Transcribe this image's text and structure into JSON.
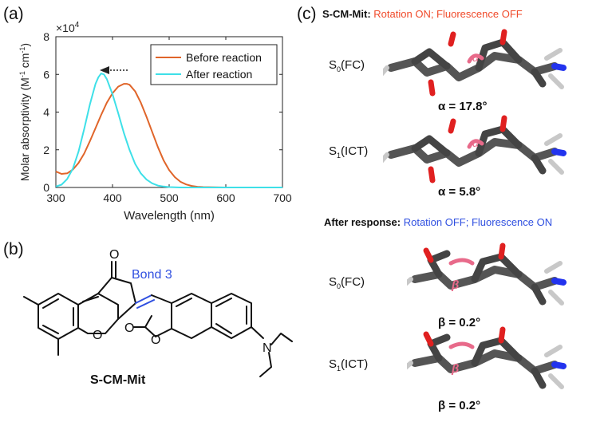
{
  "panels": {
    "a_label": "(a)",
    "b_label": "(b)",
    "c_label": "(c)"
  },
  "chart_data": {
    "type": "line",
    "xlabel": "Wavelength (nm)",
    "ylabel": "Molar absorptivity (M",
    "ylabel_sup1": "-1",
    "ylabel_mid": " cm",
    "ylabel_sup2": "-1",
    "ylabel_end": ")",
    "y_multiplier": "×10",
    "y_multiplier_exp": "4",
    "xlim": [
      300,
      700
    ],
    "ylim": [
      0,
      8
    ],
    "xticks": [
      300,
      400,
      500,
      600,
      700
    ],
    "yticks": [
      0,
      2,
      4,
      6,
      8
    ],
    "legend_position": "top-right",
    "series": [
      {
        "name": "Before reaction",
        "color": "#e0652a",
        "x": [
          300,
          310,
          320,
          330,
          340,
          350,
          360,
          370,
          380,
          390,
          400,
          410,
          420,
          425,
          430,
          440,
          450,
          460,
          470,
          480,
          490,
          500,
          510,
          520,
          530,
          540,
          550,
          560,
          580,
          600,
          650,
          700
        ],
        "y": [
          0.85,
          0.72,
          0.75,
          0.95,
          1.3,
          1.8,
          2.45,
          3.15,
          3.85,
          4.5,
          5.0,
          5.35,
          5.5,
          5.5,
          5.45,
          5.1,
          4.5,
          3.75,
          2.95,
          2.15,
          1.45,
          0.92,
          0.55,
          0.3,
          0.16,
          0.08,
          0.04,
          0.02,
          0.01,
          0.0,
          0.0,
          0.0
        ]
      },
      {
        "name": "After reaction",
        "color": "#3ee0e8",
        "x": [
          300,
          310,
          320,
          330,
          340,
          350,
          360,
          370,
          375,
          380,
          385,
          390,
          400,
          410,
          420,
          430,
          440,
          450,
          460,
          470,
          480,
          490,
          500,
          520,
          550,
          600,
          700
        ],
        "y": [
          0.05,
          0.15,
          0.45,
          1.0,
          1.9,
          3.1,
          4.4,
          5.5,
          5.85,
          6.05,
          6.0,
          5.75,
          4.95,
          3.95,
          2.9,
          2.0,
          1.25,
          0.75,
          0.42,
          0.22,
          0.1,
          0.05,
          0.02,
          0.0,
          0.0,
          0.0,
          0.0
        ]
      }
    ]
  },
  "structure": {
    "carbonyl_top": "O",
    "ring_oxygen": "O",
    "lactone_oxygen": "O",
    "lactone_ring_oxygen": "O",
    "amine_nitrogen": "N",
    "bond_label": "Bond 3",
    "compound_name": "S-CM-Mit"
  },
  "panel_c": {
    "header1_name": "S-CM-Mit",
    "header1_colon": ":",
    "header1_status": "Rotation ON; Fluorescence OFF",
    "header2_name": "After response",
    "header2_colon": ":",
    "header2_status": "Rotation OFF; Fluorescence ON",
    "on_color": "#f04a2a",
    "off_color": "#2f4fe0",
    "states": [
      {
        "s": "S",
        "sub": "0",
        "rest": "(FC)",
        "angle": "α = 17.8°",
        "ring_label": "α"
      },
      {
        "s": "S",
        "sub": "1",
        "rest": "(ICT)",
        "angle": "α = 5.8°",
        "ring_label": "α"
      },
      {
        "s": "S",
        "sub": "0",
        "rest": "(FC)",
        "angle": "β = 0.2°",
        "ring_label": "β"
      },
      {
        "s": "S",
        "sub": "1",
        "rest": "(ICT)",
        "angle": "β = 0.2°",
        "ring_label": "β"
      }
    ]
  }
}
